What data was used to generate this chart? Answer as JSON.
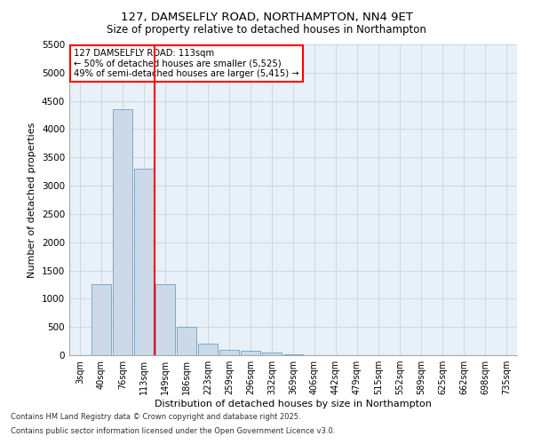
{
  "title1": "127, DAMSELFLY ROAD, NORTHAMPTON, NN4 9ET",
  "title2": "Size of property relative to detached houses in Northampton",
  "xlabel": "Distribution of detached houses by size in Northampton",
  "ylabel": "Number of detached properties",
  "categories": [
    "3sqm",
    "40sqm",
    "76sqm",
    "113sqm",
    "149sqm",
    "186sqm",
    "223sqm",
    "259sqm",
    "296sqm",
    "332sqm",
    "369sqm",
    "406sqm",
    "442sqm",
    "479sqm",
    "515sqm",
    "552sqm",
    "589sqm",
    "625sqm",
    "662sqm",
    "698sqm",
    "735sqm"
  ],
  "values": [
    0,
    1250,
    4350,
    3300,
    1250,
    500,
    200,
    100,
    75,
    50,
    10,
    5,
    2,
    1,
    0,
    0,
    0,
    0,
    0,
    0,
    0
  ],
  "bar_color": "#ccd9e8",
  "bar_edge_color": "#7aaac8",
  "red_line_index": 3,
  "annotation_lines": [
    "127 DAMSELFLY ROAD: 113sqm",
    "← 50% of detached houses are smaller (5,525)",
    "49% of semi-detached houses are larger (5,415) →"
  ],
  "ylim": [
    0,
    5500
  ],
  "yticks": [
    0,
    500,
    1000,
    1500,
    2000,
    2500,
    3000,
    3500,
    4000,
    4500,
    5000,
    5500
  ],
  "footer1": "Contains HM Land Registry data © Crown copyright and database right 2025.",
  "footer2": "Contains public sector information licensed under the Open Government Licence v3.0.",
  "bg_color": "#e8f0f8",
  "grid_color": "#c8d4de",
  "fig_bg_color": "#ffffff"
}
